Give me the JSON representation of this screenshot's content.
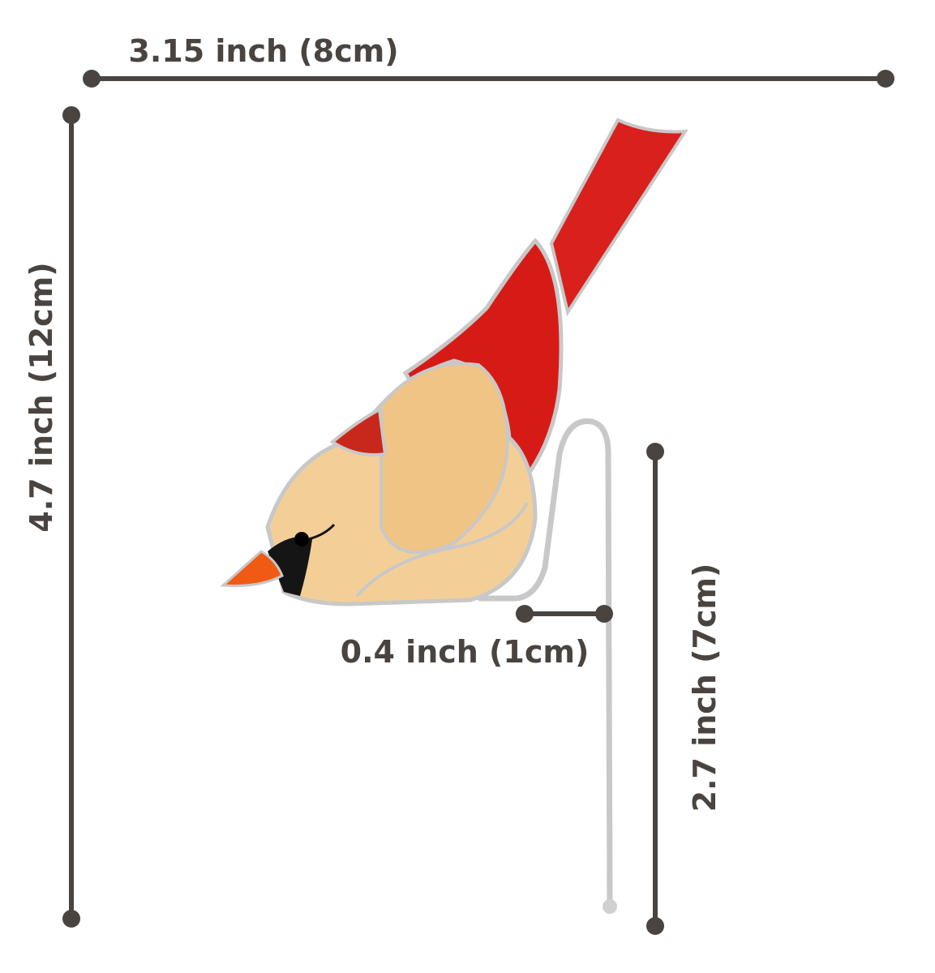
{
  "dimensions": {
    "width": "3.15 inch (8cm)",
    "height": "4.7 inch (12cm)",
    "hook_width": "0.4 inch (1cm)",
    "hook_length": "2.7 inch (7cm)"
  }
}
